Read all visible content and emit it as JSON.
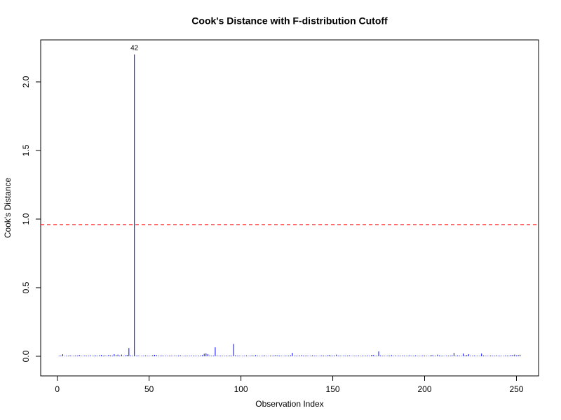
{
  "chart_data": {
    "type": "needle",
    "title": "Cook's Distance with F-distribution Cutoff",
    "x_label": "Observation Index",
    "y_label": "Cook's Distance",
    "color": "#0000ff",
    "cutoff": 0.96,
    "cutoff_color": "#ff0000",
    "point_labels": [
      {
        "label": "42",
        "x": 42
      }
    ],
    "xlim": [
      -9.04,
      262.04
    ],
    "ylim": [
      -0.143,
      2.306
    ],
    "xticks": [
      0,
      50,
      100,
      150,
      200,
      250
    ],
    "yticks": [
      {
        "value": 0,
        "label": "0.0"
      },
      0.5,
      {
        "value": 1,
        "label": "1.0"
      },
      1.5,
      {
        "value": 2,
        "label": "2.0"
      }
    ],
    "x": [
      1,
      2,
      3,
      4,
      5,
      6,
      7,
      8,
      9,
      10,
      11,
      12,
      13,
      14,
      15,
      16,
      17,
      18,
      19,
      20,
      21,
      22,
      23,
      24,
      25,
      26,
      27,
      28,
      29,
      30,
      31,
      32,
      33,
      34,
      35,
      36,
      37,
      38,
      39,
      40,
      41,
      42,
      43,
      44,
      45,
      46,
      47,
      48,
      49,
      50,
      51,
      52,
      53,
      54,
      55,
      56,
      57,
      58,
      59,
      60,
      61,
      62,
      63,
      64,
      65,
      66,
      67,
      68,
      69,
      70,
      71,
      72,
      73,
      74,
      75,
      76,
      77,
      78,
      79,
      80,
      81,
      82,
      83,
      84,
      85,
      86,
      87,
      88,
      89,
      90,
      91,
      92,
      93,
      94,
      95,
      96,
      97,
      98,
      99,
      100,
      101,
      102,
      103,
      104,
      105,
      106,
      107,
      108,
      109,
      110,
      111,
      112,
      113,
      114,
      115,
      116,
      117,
      118,
      119,
      120,
      121,
      122,
      123,
      124,
      125,
      126,
      127,
      128,
      129,
      130,
      131,
      132,
      133,
      134,
      135,
      136,
      137,
      138,
      139,
      140,
      141,
      142,
      143,
      144,
      145,
      146,
      147,
      148,
      149,
      150,
      151,
      152,
      153,
      154,
      155,
      156,
      157,
      158,
      159,
      160,
      161,
      162,
      163,
      164,
      165,
      166,
      167,
      168,
      169,
      170,
      171,
      172,
      173,
      174,
      175,
      176,
      177,
      178,
      179,
      180,
      181,
      182,
      183,
      184,
      185,
      186,
      187,
      188,
      189,
      190,
      191,
      192,
      193,
      194,
      195,
      196,
      197,
      198,
      199,
      200,
      201,
      202,
      203,
      204,
      205,
      206,
      207,
      208,
      209,
      210,
      211,
      212,
      213,
      214,
      215,
      216,
      217,
      218,
      219,
      220,
      221,
      222,
      223,
      224,
      225,
      226,
      227,
      228,
      229,
      230,
      231,
      232,
      233,
      234,
      235,
      236,
      237,
      238,
      239,
      240,
      241,
      242,
      243,
      244,
      245,
      246,
      247,
      248,
      249,
      250,
      251,
      252
    ],
    "values": [
      0.004,
      0.006,
      0.015,
      0.003,
      0.005,
      0.004,
      0.007,
      0.003,
      0.005,
      0.006,
      0.004,
      0.01,
      0.005,
      0.003,
      0.006,
      0.004,
      0.005,
      0.007,
      0.003,
      0.005,
      0.006,
      0.004,
      0.008,
      0.009,
      0.005,
      0.007,
      0.004,
      0.01,
      0.006,
      0.005,
      0.015,
      0.008,
      0.012,
      0.005,
      0.012,
      0.004,
      0.007,
      0.01,
      0.06,
      0.006,
      0.005,
      2.2,
      0.004,
      0.006,
      0.003,
      0.005,
      0.004,
      0.006,
      0.005,
      0.004,
      0.003,
      0.008,
      0.01,
      0.009,
      0.005,
      0.004,
      0.006,
      0.003,
      0.005,
      0.004,
      0.004,
      0.005,
      0.003,
      0.006,
      0.004,
      0.005,
      0.007,
      0.003,
      0.004,
      0.005,
      0.003,
      0.004,
      0.006,
      0.005,
      0.004,
      0.003,
      0.005,
      0.006,
      0.008,
      0.018,
      0.022,
      0.015,
      0.006,
      0.004,
      0.005,
      0.065,
      0.006,
      0.004,
      0.005,
      0.003,
      0.004,
      0.005,
      0.003,
      0.006,
      0.004,
      0.09,
      0.007,
      0.004,
      0.005,
      0.003,
      0.005,
      0.004,
      0.006,
      0.003,
      0.005,
      0.007,
      0.004,
      0.008,
      0.005,
      0.004,
      0.003,
      0.005,
      0.006,
      0.004,
      0.003,
      0.005,
      0.004,
      0.006,
      0.009,
      0.007,
      0.005,
      0.004,
      0.003,
      0.006,
      0.004,
      0.005,
      0.007,
      0.025,
      0.004,
      0.005,
      0.003,
      0.006,
      0.008,
      0.005,
      0.004,
      0.006,
      0.003,
      0.005,
      0.007,
      0.004,
      0.005,
      0.003,
      0.004,
      0.006,
      0.005,
      0.004,
      0.007,
      0.009,
      0.005,
      0.004,
      0.006,
      0.012,
      0.004,
      0.005,
      0.003,
      0.006,
      0.005,
      0.004,
      0.007,
      0.003,
      0.004,
      0.005,
      0.003,
      0.006,
      0.004,
      0.005,
      0.003,
      0.004,
      0.006,
      0.005,
      0.008,
      0.01,
      0.004,
      0.005,
      0.035,
      0.006,
      0.004,
      0.005,
      0.003,
      0.006,
      0.005,
      0.008,
      0.004,
      0.006,
      0.003,
      0.005,
      0.004,
      0.006,
      0.005,
      0.003,
      0.004,
      0.007,
      0.005,
      0.004,
      0.006,
      0.003,
      0.005,
      0.004,
      0.006,
      0.005,
      0.004,
      0.003,
      0.006,
      0.009,
      0.004,
      0.005,
      0.012,
      0.006,
      0.004,
      0.005,
      0.003,
      0.006,
      0.004,
      0.005,
      0.007,
      0.025,
      0.004,
      0.006,
      0.005,
      0.004,
      0.02,
      0.006,
      0.009,
      0.015,
      0.005,
      0.004,
      0.006,
      0.003,
      0.005,
      0.004,
      0.02,
      0.006,
      0.004,
      0.005,
      0.003,
      0.006,
      0.004,
      0.005,
      0.007,
      0.004,
      0.005,
      0.003,
      0.004,
      0.006,
      0.005,
      0.004,
      0.008,
      0.01,
      0.012,
      0.006,
      0.009,
      0.011
    ]
  }
}
